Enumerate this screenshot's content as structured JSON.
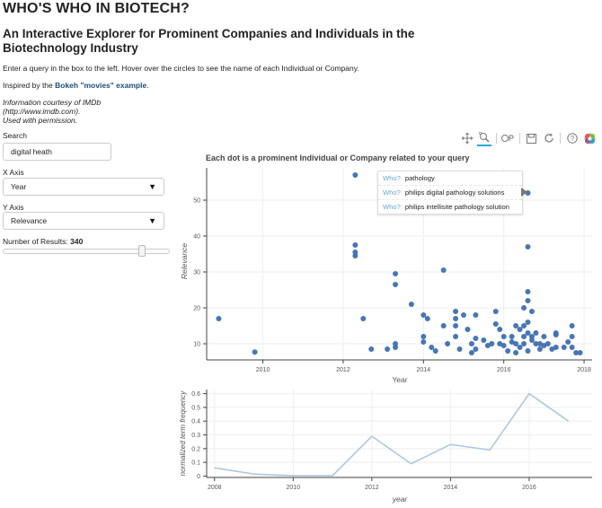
{
  "header": {
    "title": "WHO'S WHO IN BIOTECH?",
    "subtitle": "An Interactive Explorer for Prominent Companies and Individuals in the Biotechnology Industry",
    "intro": "Enter a query in the box to the left. Hover over the circles to see the name of each Individual or Company.",
    "inspired_prefix": "Inspired by the ",
    "inspired_link": "Bokeh \"movies\" example",
    "inspired_suffix": ".",
    "credit_1": "Information courtesy of IMDb",
    "credit_2": "(http://www.imdb.com).",
    "credit_3": "Used with permission."
  },
  "controls": {
    "search_label": "Search",
    "search_value": "digital heath",
    "x_axis_label": "X Axis",
    "x_axis_value": "Year",
    "y_axis_label": "Y Axis",
    "y_axis_value": "Relevance",
    "results_label": "Number of Results: ",
    "results_value": "340",
    "results_fraction": 0.85
  },
  "toolbar": {
    "tools": [
      "pan-icon",
      "box-zoom-icon",
      "wheel-zoom-icon",
      "save-icon",
      "reset-icon",
      "help-icon",
      "bokeh-logo"
    ]
  },
  "tooltip": [
    {
      "key": "Who?",
      "value": "pathology"
    },
    {
      "key": "Who?",
      "value": "philips digital pathology solutions"
    },
    {
      "key": "Who?",
      "value": "philips intellisite pathology solution"
    }
  ],
  "colors": {
    "point": "#3e6fb0",
    "line": "#a9c4e4",
    "grid": "#eeeeee",
    "axis": "#444444"
  },
  "chart_data": [
    {
      "type": "scatter",
      "title": "Each dot is a prominent Individual or Company related to your query",
      "xlabel": "Year",
      "ylabel": "Relevance",
      "xlim": [
        2008.6,
        2018.2
      ],
      "ylim": [
        5.5,
        59
      ],
      "xticks": [
        2010,
        2012,
        2014,
        2016,
        2018
      ],
      "yticks": [
        10,
        20,
        30,
        40,
        50
      ],
      "grid": true,
      "points": [
        [
          2008.9,
          17
        ],
        [
          2009.8,
          7.7
        ],
        [
          2012.3,
          57
        ],
        [
          2012.3,
          37.5
        ],
        [
          2012.3,
          35.5
        ],
        [
          2012.3,
          34.5
        ],
        [
          2012.5,
          17
        ],
        [
          2012.7,
          8.5
        ],
        [
          2013.1,
          8.5
        ],
        [
          2013.3,
          29.5
        ],
        [
          2013.3,
          26.5
        ],
        [
          2013.3,
          10
        ],
        [
          2013.3,
          9
        ],
        [
          2013.7,
          21
        ],
        [
          2014.0,
          18
        ],
        [
          2014.1,
          17
        ],
        [
          2014.0,
          12
        ],
        [
          2014.0,
          10.5
        ],
        [
          2014.2,
          9
        ],
        [
          2014.3,
          8
        ],
        [
          2014.5,
          30.5
        ],
        [
          2014.5,
          15
        ],
        [
          2014.6,
          10
        ],
        [
          2014.8,
          19
        ],
        [
          2014.8,
          17
        ],
        [
          2014.8,
          15
        ],
        [
          2014.8,
          12
        ],
        [
          2014.9,
          8.5
        ],
        [
          2015.0,
          18
        ],
        [
          2015.1,
          14
        ],
        [
          2015.2,
          10
        ],
        [
          2015.2,
          7.5
        ],
        [
          2015.3,
          18
        ],
        [
          2015.3,
          11.5
        ],
        [
          2015.3,
          8.5
        ],
        [
          2015.5,
          11
        ],
        [
          2015.6,
          9.5
        ],
        [
          2015.7,
          10
        ],
        [
          2015.8,
          19
        ],
        [
          2015.8,
          15.5
        ],
        [
          2015.9,
          14
        ],
        [
          2015.9,
          10
        ],
        [
          2016.0,
          12
        ],
        [
          2016.0,
          9.5
        ],
        [
          2016.1,
          8
        ],
        [
          2016.2,
          12
        ],
        [
          2016.2,
          10.5
        ],
        [
          2016.3,
          15
        ],
        [
          2016.3,
          10
        ],
        [
          2016.3,
          7.5
        ],
        [
          2016.4,
          14
        ],
        [
          2016.4,
          9
        ],
        [
          2016.5,
          20
        ],
        [
          2016.5,
          15
        ],
        [
          2016.5,
          12
        ],
        [
          2016.5,
          10
        ],
        [
          2016.6,
          8
        ],
        [
          2016.6,
          13
        ],
        [
          2016.6,
          37
        ],
        [
          2016.6,
          24.5
        ],
        [
          2016.6,
          22
        ],
        [
          2016.6,
          16
        ],
        [
          2016.7,
          19
        ],
        [
          2016.7,
          12
        ],
        [
          2016.7,
          11
        ],
        [
          2016.8,
          10
        ],
        [
          2016.8,
          13
        ],
        [
          2016.9,
          10
        ],
        [
          2016.9,
          8.5
        ],
        [
          2017.0,
          12
        ],
        [
          2017.0,
          9.5
        ],
        [
          2017.1,
          10
        ],
        [
          2017.2,
          8.5
        ],
        [
          2017.3,
          9
        ],
        [
          2017.3,
          12.5
        ],
        [
          2017.3,
          13
        ],
        [
          2017.5,
          9
        ],
        [
          2017.6,
          10.5
        ],
        [
          2017.7,
          15
        ],
        [
          2017.7,
          12
        ],
        [
          2017.7,
          9
        ],
        [
          2017.8,
          7.5
        ],
        [
          2017.9,
          7.5
        ],
        [
          2016.6,
          52
        ]
      ]
    },
    {
      "type": "line",
      "title": "",
      "xlabel": "year",
      "ylabel": "normalized term frequency",
      "xlim": [
        2007.8,
        2017.6
      ],
      "ylim": [
        -0.01,
        0.63
      ],
      "xticks": [
        2008,
        2010,
        2012,
        2014,
        2016
      ],
      "yticks": [
        0,
        0.1,
        0.2,
        0.3,
        0.4,
        0.5,
        0.6
      ],
      "grid": true,
      "x": [
        2008,
        2009,
        2010,
        2011,
        2012,
        2013,
        2014,
        2015,
        2016,
        2017
      ],
      "y": [
        0.06,
        0.015,
        0.003,
        0.003,
        0.29,
        0.09,
        0.23,
        0.19,
        0.6,
        0.4
      ]
    }
  ]
}
